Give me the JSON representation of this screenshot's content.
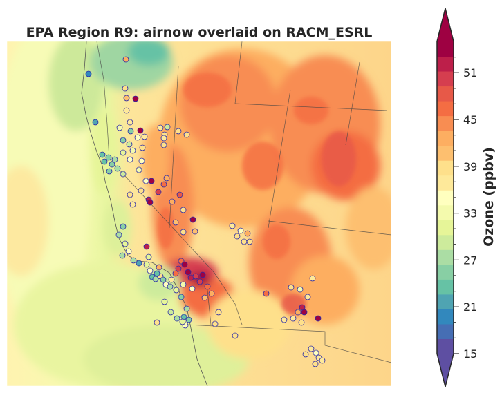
{
  "chart_data": {
    "type": "heatmap",
    "title": "EPA Region R9: airnow overlaid on RACM_ESRL",
    "map": {
      "region": "EPA Region R9",
      "background_field": "RACM_ESRL",
      "overlay": "airnow"
    },
    "colorbar": {
      "label": "Ozone (ppbv)",
      "vmin": 15,
      "vmax": 55,
      "extend": "both",
      "ticks": [
        15,
        21,
        27,
        33,
        39,
        45,
        51
      ],
      "tick_labels": [
        "15",
        "21",
        "27",
        "33",
        "39",
        "45",
        "51"
      ],
      "colors": [
        "#5e4fa2",
        "#466eb4",
        "#3288bd",
        "#4fa4b2",
        "#66c2a5",
        "#88cfa4",
        "#abdda4",
        "#cdeb9c",
        "#e6f598",
        "#f4faad",
        "#ffffbf",
        "#fee99a",
        "#fee08b",
        "#fdbf6f",
        "#fdae61",
        "#f88d52",
        "#f46d43",
        "#e75948",
        "#d53e4f",
        "#bd1f4a",
        "#9e0142"
      ]
    }
  }
}
